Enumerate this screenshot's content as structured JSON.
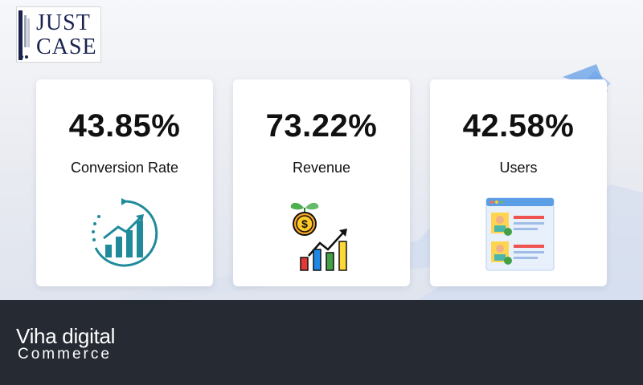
{
  "logo": {
    "line1": "JUST",
    "line2": "CASE"
  },
  "metrics": [
    {
      "value": "43.85%",
      "label": "Conversion Rate",
      "icon": "growth-chart-icon"
    },
    {
      "value": "73.22%",
      "label": "Revenue",
      "icon": "money-bar-chart-icon"
    },
    {
      "value": "42.58%",
      "label": "Users",
      "icon": "user-profiles-icon"
    }
  ],
  "footer": {
    "brand_line1": "Viha digital",
    "brand_line2": "Commerce"
  },
  "colors": {
    "teal": "#1f8a9a",
    "navy": "#1a2350",
    "footer_bg": "#262a33",
    "accent_blue": "#2f7de1"
  }
}
